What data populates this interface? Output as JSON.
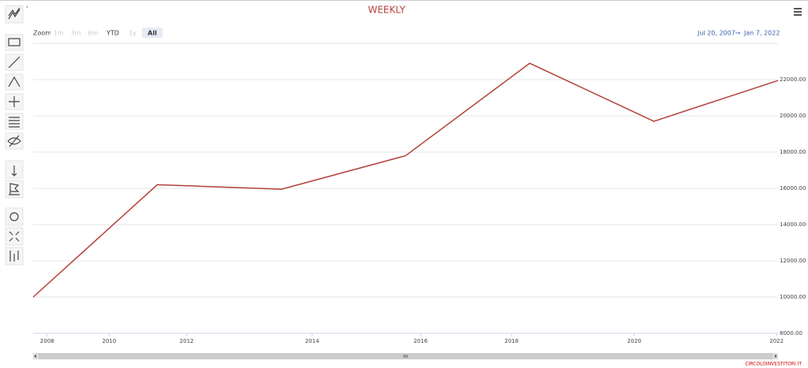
{
  "chart_data": {
    "type": "line",
    "title": "WEEKLY",
    "range_selector": {
      "label": "Zoom",
      "buttons": [
        "1m",
        "3m",
        "6m",
        "YTD",
        "1y",
        "All"
      ],
      "selected": 5
    },
    "range_from": "Jul 20, 2007",
    "range_separator": "→",
    "range_to": "Jan 7, 2022",
    "credits": "CIRCOLOINVESTITORI.IT",
    "ordinal": true,
    "x": [
      2007.55,
      2011.55,
      2013.45,
      2015.67,
      2018.4,
      2020.3,
      2022.02
    ],
    "values": [
      10000,
      16200,
      15950,
      17800,
      22900,
      19700,
      21950
    ],
    "color": "#b5403a",
    "xlim": [
      2007.55,
      2022.02
    ],
    "xticks": [
      2008,
      2010,
      2012,
      2014,
      2016,
      2018,
      2020,
      2022
    ],
    "ylim": [
      8000,
      24000
    ],
    "yticks": [
      {
        "value": 8000,
        "label": "8000.00"
      },
      {
        "value": 10000,
        "label": "10000.00"
      },
      {
        "value": 12000,
        "label": "12000.00"
      },
      {
        "value": 14000,
        "label": "14000.00"
      },
      {
        "value": 16000,
        "label": "16000.00"
      },
      {
        "value": 18000,
        "label": "18000.00"
      },
      {
        "value": 20000,
        "label": "20000.00"
      },
      {
        "value": 22000,
        "label": "22000.00"
      }
    ],
    "grid": true
  }
}
